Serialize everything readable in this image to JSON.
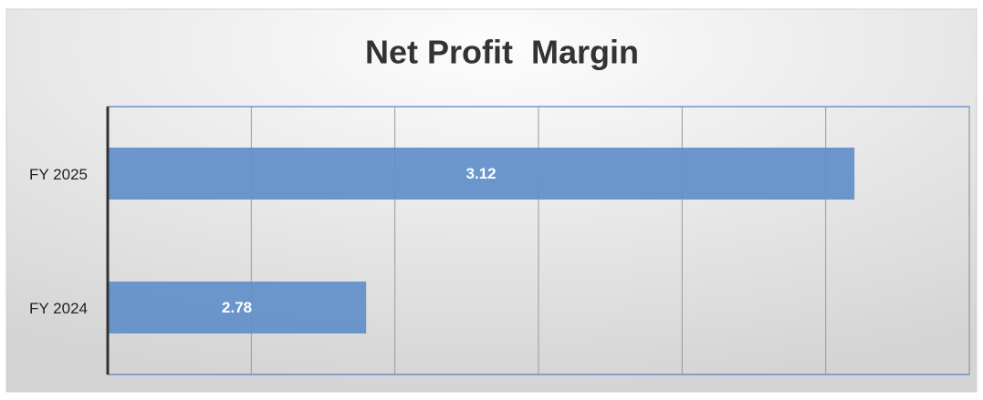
{
  "chart_data": {
    "type": "hbar",
    "title": "Net Profit  Margin",
    "categories": [
      "FY 2025",
      "FY 2024"
    ],
    "values": [
      3.12,
      2.78
    ],
    "color": "#6391c9",
    "xlim": [
      2.6,
      3.2
    ],
    "xticks": [
      2.6,
      2.7,
      2.8,
      2.9,
      3.0,
      3.1,
      3.2
    ],
    "grid": true
  }
}
